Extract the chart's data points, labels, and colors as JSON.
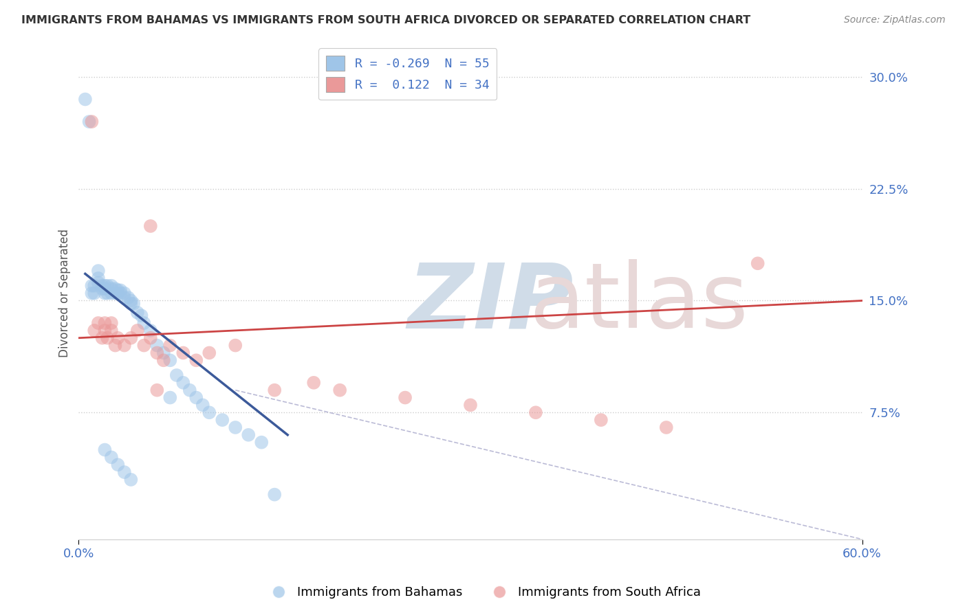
{
  "title": "IMMIGRANTS FROM BAHAMAS VS IMMIGRANTS FROM SOUTH AFRICA DIVORCED OR SEPARATED CORRELATION CHART",
  "source": "Source: ZipAtlas.com",
  "ylabel": "Divorced or Separated",
  "legend_blue_r": "-0.269",
  "legend_blue_n": "55",
  "legend_pink_r": "0.122",
  "legend_pink_n": "34",
  "xlim": [
    0.0,
    0.6
  ],
  "ylim": [
    -0.01,
    0.32
  ],
  "blue_color": "#9fc5e8",
  "pink_color": "#ea9999",
  "blue_line_color": "#3c5a9a",
  "pink_line_color": "#cc4444",
  "watermark_zip_color": "#d0dce8",
  "watermark_atlas_color": "#e8d8d8",
  "blue_scatter_x": [
    0.005,
    0.008,
    0.01,
    0.01,
    0.012,
    0.012,
    0.015,
    0.015,
    0.015,
    0.018,
    0.018,
    0.02,
    0.02,
    0.02,
    0.022,
    0.022,
    0.025,
    0.025,
    0.025,
    0.028,
    0.028,
    0.03,
    0.03,
    0.032,
    0.032,
    0.035,
    0.035,
    0.038,
    0.04,
    0.04,
    0.042,
    0.045,
    0.048,
    0.05,
    0.055,
    0.06,
    0.065,
    0.07,
    0.07,
    0.075,
    0.08,
    0.085,
    0.09,
    0.095,
    0.1,
    0.11,
    0.12,
    0.13,
    0.14,
    0.15,
    0.02,
    0.025,
    0.03,
    0.035,
    0.04
  ],
  "blue_scatter_y": [
    0.285,
    0.27,
    0.155,
    0.16,
    0.155,
    0.16,
    0.162,
    0.165,
    0.17,
    0.158,
    0.16,
    0.155,
    0.158,
    0.16,
    0.155,
    0.16,
    0.155,
    0.158,
    0.16,
    0.155,
    0.158,
    0.155,
    0.157,
    0.155,
    0.157,
    0.152,
    0.155,
    0.152,
    0.15,
    0.148,
    0.148,
    0.142,
    0.14,
    0.135,
    0.13,
    0.12,
    0.115,
    0.11,
    0.085,
    0.1,
    0.095,
    0.09,
    0.085,
    0.08,
    0.075,
    0.07,
    0.065,
    0.06,
    0.055,
    0.02,
    0.05,
    0.045,
    0.04,
    0.035,
    0.03
  ],
  "pink_scatter_x": [
    0.01,
    0.012,
    0.015,
    0.018,
    0.02,
    0.02,
    0.022,
    0.025,
    0.025,
    0.028,
    0.03,
    0.035,
    0.04,
    0.045,
    0.05,
    0.055,
    0.06,
    0.065,
    0.07,
    0.08,
    0.09,
    0.1,
    0.12,
    0.15,
    0.18,
    0.2,
    0.25,
    0.3,
    0.35,
    0.4,
    0.45,
    0.52,
    0.055,
    0.06
  ],
  "pink_scatter_y": [
    0.27,
    0.13,
    0.135,
    0.125,
    0.13,
    0.135,
    0.125,
    0.13,
    0.135,
    0.12,
    0.125,
    0.12,
    0.125,
    0.13,
    0.12,
    0.125,
    0.115,
    0.11,
    0.12,
    0.115,
    0.11,
    0.115,
    0.12,
    0.09,
    0.095,
    0.09,
    0.085,
    0.08,
    0.075,
    0.07,
    0.065,
    0.175,
    0.2,
    0.09
  ],
  "blue_line_x": [
    0.005,
    0.16
  ],
  "blue_line_y_start": 0.168,
  "blue_line_y_end": 0.06,
  "pink_line_x_start": 0.0,
  "pink_line_x_end": 0.6,
  "pink_line_y_start": 0.125,
  "pink_line_y_end": 0.15,
  "dash_line_x": [
    0.12,
    0.6
  ],
  "dash_line_y": [
    0.09,
    -0.01
  ]
}
